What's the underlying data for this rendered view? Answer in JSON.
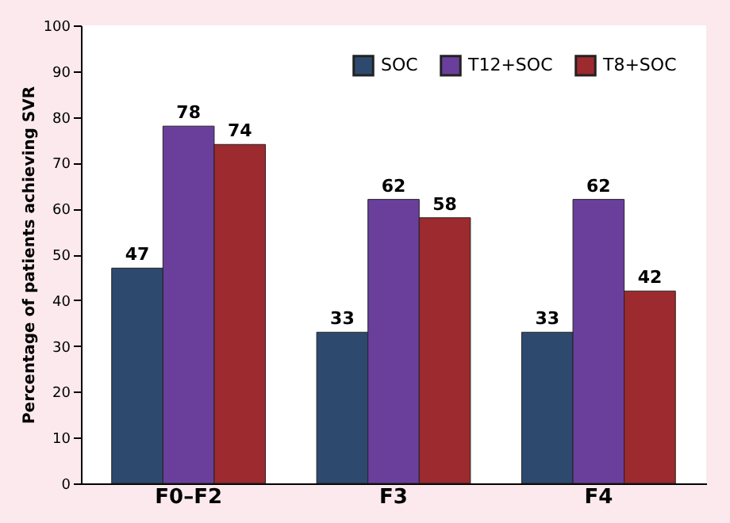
{
  "chart_data": {
    "type": "bar",
    "ylabel": "Percentage of patients achieving SVR",
    "categories": [
      "F0–F2",
      "F3",
      "F4"
    ],
    "series": [
      {
        "name": "SOC",
        "color": "#2d4a6e",
        "values": [
          47,
          33,
          33
        ]
      },
      {
        "name": "T12+SOC",
        "color": "#6a3f9c",
        "values": [
          78,
          62,
          62
        ]
      },
      {
        "name": "T8+SOC",
        "color": "#9c2a2e",
        "values": [
          74,
          58,
          42
        ]
      }
    ],
    "ylim": [
      0,
      100
    ],
    "yticks": [
      0,
      10,
      20,
      30,
      40,
      50,
      60,
      70,
      80,
      90,
      100
    ],
    "data_labels": true,
    "legend": "top right",
    "grid": false
  }
}
